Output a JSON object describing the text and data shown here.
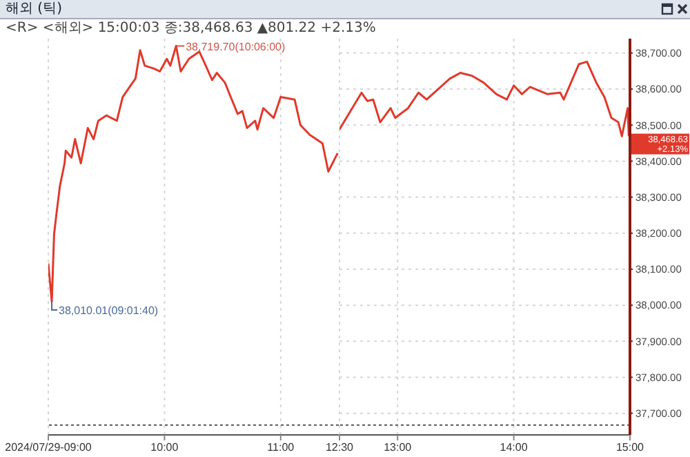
{
  "chart_data": [
    {
      "type": "line",
      "title": "해외 (틱)",
      "subtitle": "<R> <해외> 15:00:03 종:38,468.63 ▲801.22 +2.13%",
      "x": [
        9.0,
        9.03,
        9.05,
        9.07,
        9.1,
        9.14,
        9.15,
        9.2,
        9.23,
        9.28,
        9.34,
        9.39,
        9.43,
        9.5,
        9.59,
        9.64,
        9.7,
        9.75,
        9.79,
        9.83,
        9.91,
        9.96,
        10.02,
        10.05,
        10.1,
        10.14,
        10.21,
        10.3,
        10.35,
        10.41,
        10.45,
        10.52,
        10.57,
        10.63,
        10.67,
        10.71,
        10.78,
        10.8,
        10.85,
        10.94,
        11.0,
        11.12,
        11.17,
        11.25,
        11.36,
        11.41,
        11.49
      ],
      "series": [
        {
          "color": "#e03a2c",
          "values": [
            38116,
            38010,
            38198,
            38253,
            38331,
            38394,
            38429,
            38410,
            38461,
            38394,
            38492,
            38461,
            38512,
            38527,
            38512,
            38578,
            38606,
            38629,
            38708,
            38665,
            38657,
            38649,
            38684,
            38665,
            38720,
            38649,
            38684,
            38704,
            38669,
            38625,
            38645,
            38618,
            38578,
            38531,
            38539,
            38492,
            38512,
            38488,
            38547,
            38520,
            38578,
            38571,
            38500,
            38473,
            38449,
            38371,
            38422
          ]
        }
      ],
      "xlim": [
        9,
        11.5
      ],
      "xticks": [
        {
          "value": 9,
          "label": "2024/07/29-09:00"
        },
        {
          "value": 10,
          "label": "10:00"
        },
        {
          "value": 11,
          "label": "11:00"
        }
      ],
      "ylim": [
        37640,
        38740
      ],
      "tick_labels": "x",
      "grid": true,
      "ref_lines": [
        {
          "axis": "y",
          "value": 37667.41,
          "line_style": "dotted",
          "color": "#555555"
        }
      ],
      "annotations": [
        {
          "text": "38,719.70(10:06:00)",
          "x": 10.1,
          "y": 38719.7
        },
        {
          "text": "38,010.01(09:01:40)",
          "x": 9.03,
          "y": 38010.01
        }
      ]
    },
    {
      "type": "line",
      "x": [
        12.5,
        12.58,
        12.69,
        12.74,
        12.79,
        12.85,
        12.94,
        12.98,
        13.09,
        13.18,
        13.25,
        13.45,
        13.54,
        13.64,
        13.74,
        13.85,
        13.94,
        14.0,
        14.07,
        14.14,
        14.29,
        14.4,
        14.43,
        14.56,
        14.63,
        14.71,
        14.78,
        14.84,
        14.9,
        14.93,
        14.98,
        14.99
      ],
      "series": [
        {
          "color": "#e03a2c",
          "values": [
            38488,
            38531,
            38590,
            38567,
            38571,
            38508,
            38547,
            38520,
            38547,
            38590,
            38571,
            38629,
            38645,
            38637,
            38618,
            38586,
            38571,
            38610,
            38586,
            38606,
            38586,
            38590,
            38571,
            38669,
            38676,
            38618,
            38578,
            38520,
            38508,
            38469,
            38547,
            38469
          ]
        }
      ],
      "xlim": [
        12.5,
        15
      ],
      "xticks": [
        {
          "value": 12.5,
          "label": "12:30"
        },
        {
          "value": 13,
          "label": "13:00"
        },
        {
          "value": 14,
          "label": "14:00"
        },
        {
          "value": 15,
          "label": "15:00"
        }
      ],
      "ylim": [
        37640,
        38740
      ],
      "yticks": [
        {
          "value": 37700,
          "label": "37,700.00"
        },
        {
          "value": 37800,
          "label": "37,800.00"
        },
        {
          "value": 37900,
          "label": "37,900.00"
        },
        {
          "value": 38000,
          "label": "38,000.00"
        },
        {
          "value": 38100,
          "label": "38,100.00"
        },
        {
          "value": 38200,
          "label": "38,200.00"
        },
        {
          "value": 38300,
          "label": "38,300.00"
        },
        {
          "value": 38400,
          "label": "38,400.00"
        },
        {
          "value": 38500,
          "label": "38,500.00"
        },
        {
          "value": 38600,
          "label": "38,600.00"
        },
        {
          "value": 38700,
          "label": "38,700.00"
        }
      ],
      "grid": true,
      "ref_lines": [
        {
          "axis": "y",
          "value": 37667.41,
          "line_style": "dotted",
          "color": "#555555"
        }
      ],
      "annotations": [
        {
          "text": "38,468.63 +2.13%",
          "x": 15,
          "y": 38468.63
        }
      ]
    }
  ]
}
